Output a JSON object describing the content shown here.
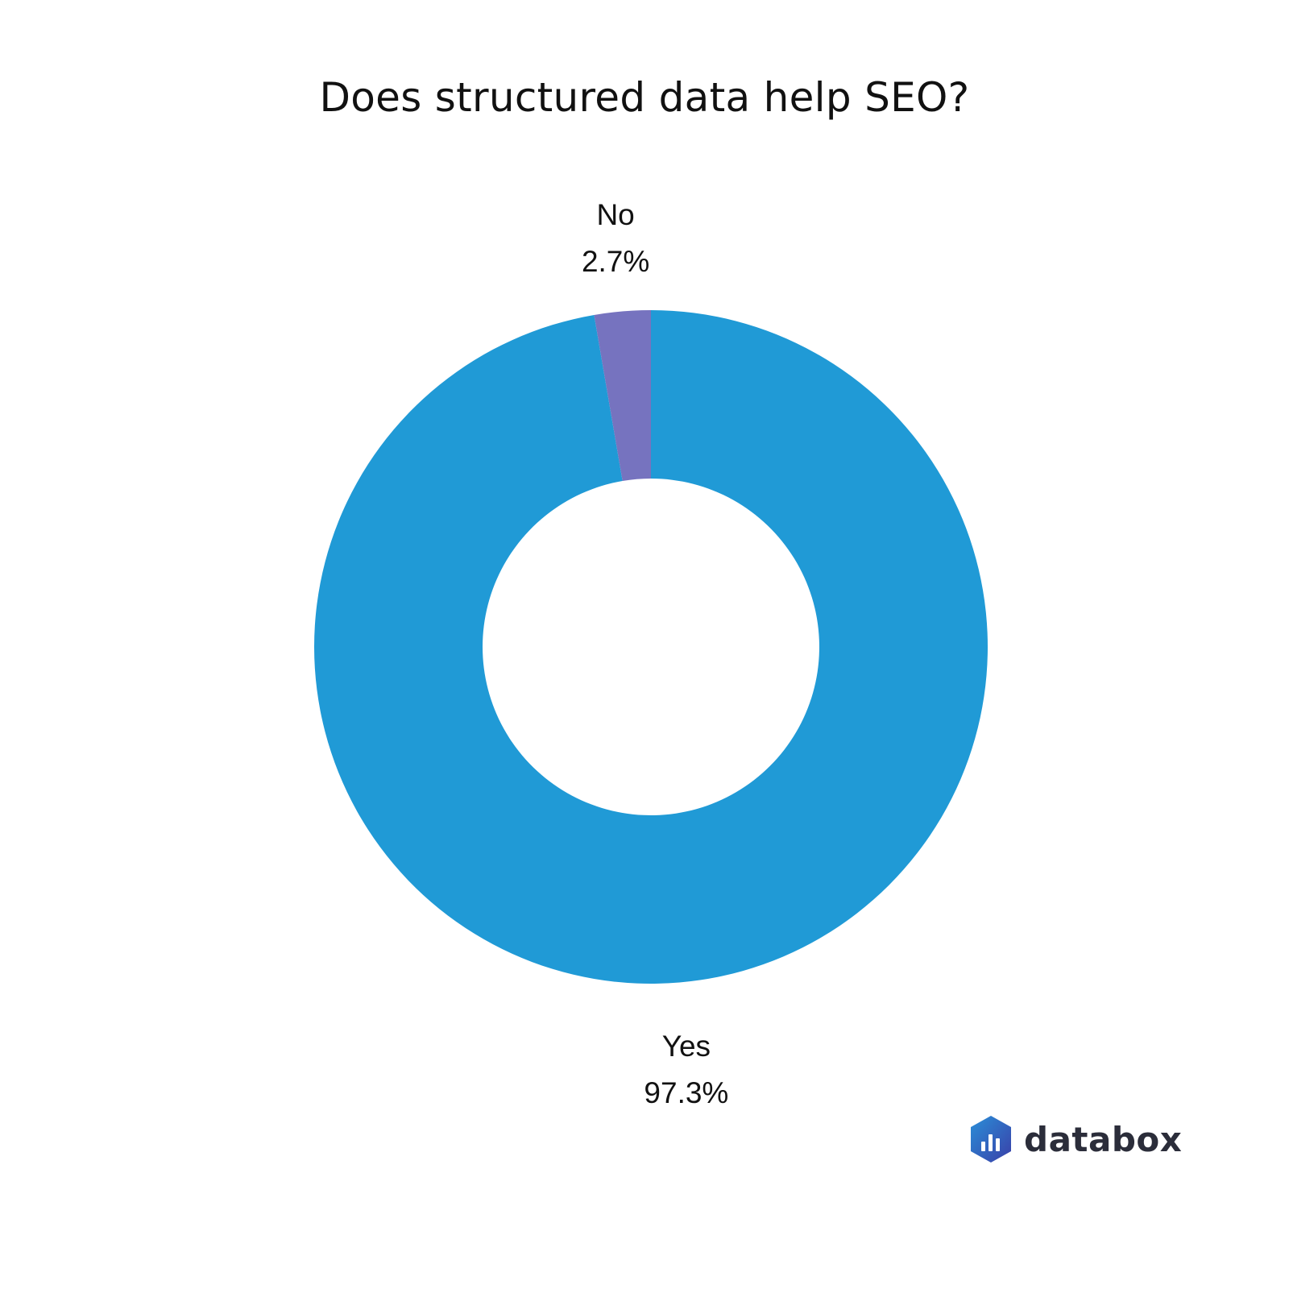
{
  "chart_data": {
    "type": "pie",
    "title": "Does structured data help SEO?",
    "donut": true,
    "slices": [
      {
        "label": "Yes",
        "value": 97.3,
        "display": "97.3%",
        "color": "#209AD6"
      },
      {
        "label": "No",
        "value": 2.7,
        "display": "2.7%",
        "color": "#7673BF"
      }
    ],
    "start_angle": "top, clockwise",
    "legend": "none"
  },
  "branding": {
    "logo_text": "databox",
    "logo_icon": "databox-hexagon-bar-chart-icon",
    "logo_color": "#2b2d3a"
  }
}
